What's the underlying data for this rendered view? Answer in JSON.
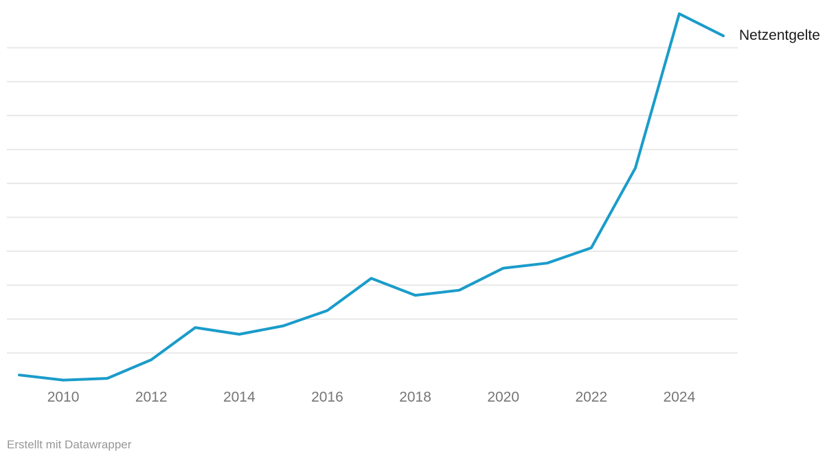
{
  "chart_data": {
    "type": "line",
    "title": "",
    "x": [
      2009,
      2010,
      2011,
      2012,
      2013,
      2014,
      2015,
      2016,
      2017,
      2018,
      2019,
      2020,
      2021,
      2022,
      2023,
      2024,
      2025
    ],
    "series": [
      {
        "name": "Netzentgelte",
        "values": [
          0.35,
          0.2,
          0.25,
          0.8,
          1.75,
          1.55,
          1.8,
          2.25,
          3.2,
          2.7,
          2.85,
          3.5,
          3.65,
          4.1,
          6.45,
          11.0,
          10.35
        ]
      }
    ],
    "x_tick_labels": [
      "2010",
      "2012",
      "2014",
      "2016",
      "2018",
      "2020",
      "2022",
      "2024"
    ],
    "x_tick_years": [
      2010,
      2012,
      2014,
      2016,
      2018,
      2020,
      2022,
      2024
    ],
    "y_axis": {
      "labels_visible": false,
      "gridline_values": [
        1,
        2,
        3,
        4,
        5,
        6,
        7,
        8,
        9,
        10
      ],
      "unit": "unlabeled (values estimated in gridline units)"
    },
    "xlim": [
      2009,
      2025
    ],
    "ylim": [
      0,
      11.2
    ],
    "grid": "horizontal-only",
    "legend_position": "end-of-line-right"
  },
  "footer": {
    "attribution": "Erstellt mit Datawrapper"
  },
  "colors": {
    "line": "#1a9cca",
    "gridline": "#e8e8e8",
    "tick_label": "#767676",
    "series_label": "#1a1a1a",
    "footer_text": "#979797",
    "background": "#ffffff"
  }
}
